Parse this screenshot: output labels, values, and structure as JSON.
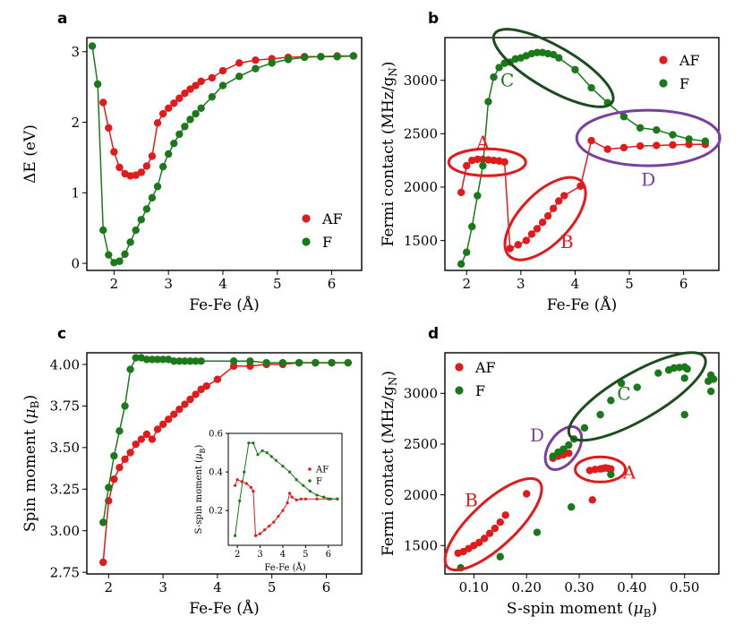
{
  "colors": {
    "AF": "#e31a1c",
    "F": "#1a7a1a",
    "C_ellipse": "#1d4d1d",
    "D_ellipse": "#7b3fa0",
    "red": "#e31a1c"
  },
  "chart_data": [
    {
      "id": "a",
      "type": "line",
      "panel_label": "a",
      "xlabel": "Fe-Fe (Å)",
      "ylabel": "ΔE (eV)",
      "xlim": [
        1.5,
        6.55
      ],
      "ylim": [
        -0.1,
        3.2
      ],
      "xticks": [
        2,
        3,
        4,
        5,
        6
      ],
      "yticks": [
        0,
        1,
        2,
        3
      ],
      "legend": "right",
      "series": [
        {
          "name": "AF",
          "color": "AF",
          "x": [
            1.8,
            1.9,
            2.0,
            2.1,
            2.2,
            2.3,
            2.4,
            2.5,
            2.6,
            2.7,
            2.8,
            2.9,
            3.0,
            3.1,
            3.2,
            3.3,
            3.4,
            3.5,
            3.6,
            3.8,
            4.0,
            4.3,
            4.6,
            4.9,
            5.2,
            5.5,
            5.8,
            6.1,
            6.4
          ],
          "y": [
            2.28,
            1.92,
            1.58,
            1.36,
            1.27,
            1.24,
            1.25,
            1.29,
            1.38,
            1.52,
            1.99,
            2.12,
            2.2,
            2.27,
            2.34,
            2.41,
            2.47,
            2.52,
            2.58,
            2.63,
            2.73,
            2.84,
            2.88,
            2.9,
            2.92,
            2.93,
            2.93,
            2.94,
            2.94
          ]
        },
        {
          "name": "F",
          "color": "F",
          "x": [
            1.6,
            1.7,
            1.8,
            1.9,
            2.0,
            2.1,
            2.2,
            2.3,
            2.4,
            2.5,
            2.6,
            2.7,
            2.8,
            2.9,
            3.0,
            3.1,
            3.2,
            3.3,
            3.4,
            3.5,
            3.6,
            3.8,
            4.0,
            4.3,
            4.6,
            4.9,
            5.2,
            5.5,
            5.8,
            6.1,
            6.4
          ],
          "y": [
            3.08,
            2.54,
            0.47,
            0.12,
            0.01,
            0.03,
            0.13,
            0.3,
            0.47,
            0.62,
            0.77,
            0.93,
            1.09,
            1.37,
            1.55,
            1.7,
            1.83,
            1.94,
            2.04,
            2.12,
            2.2,
            2.36,
            2.52,
            2.65,
            2.76,
            2.84,
            2.89,
            2.92,
            2.93,
            2.93,
            2.94
          ]
        }
      ]
    },
    {
      "id": "b",
      "type": "line",
      "panel_label": "b",
      "xlabel": "Fe-Fe (Å)",
      "ylabel": "Fermi contact (MHz/g",
      "ylabel_sub": "N",
      "ylabel_end": ")",
      "xlim": [
        1.6,
        6.65
      ],
      "ylim": [
        1220,
        3400
      ],
      "xticks": [
        2,
        3,
        4,
        5,
        6
      ],
      "yticks": [
        1500,
        2000,
        2500,
        3000
      ],
      "legend": "top-right",
      "series": [
        {
          "name": "AF",
          "color": "AF",
          "x": [
            1.9,
            2.0,
            2.1,
            2.2,
            2.3,
            2.4,
            2.5,
            2.6,
            2.7,
            2.8,
            2.95,
            3.1,
            3.2,
            3.3,
            3.4,
            3.5,
            3.6,
            3.7,
            3.8,
            4.1,
            4.3,
            4.6,
            4.9,
            5.2,
            5.5,
            5.8,
            6.1,
            6.4
          ],
          "y": [
            1950,
            2200,
            2250,
            2260,
            2260,
            2255,
            2250,
            2245,
            2235,
            1425,
            1460,
            1500,
            1560,
            1610,
            1670,
            1730,
            1800,
            1870,
            1920,
            2010,
            2435,
            2355,
            2370,
            2385,
            2390,
            2395,
            2400,
            2400
          ]
        },
        {
          "name": "F",
          "color": "F",
          "x": [
            1.9,
            2.0,
            2.1,
            2.2,
            2.3,
            2.4,
            2.5,
            2.6,
            2.7,
            2.8,
            2.9,
            3.0,
            3.1,
            3.2,
            3.3,
            3.4,
            3.5,
            3.6,
            3.7,
            4.0,
            4.3,
            4.6,
            4.9,
            5.2,
            5.5,
            5.8,
            6.1,
            6.4
          ],
          "y": [
            1280,
            1390,
            1630,
            1920,
            2200,
            2800,
            3030,
            3120,
            3160,
            3170,
            3200,
            3210,
            3230,
            3250,
            3260,
            3260,
            3250,
            3240,
            3210,
            3100,
            2930,
            2790,
            2660,
            2555,
            2535,
            2490,
            2450,
            2430
          ]
        }
      ],
      "annotations": [
        {
          "text": "A",
          "x": 2.3,
          "y": 2420,
          "color": "AF"
        },
        {
          "text": "B",
          "x": 3.85,
          "y": 1490,
          "color": "AF"
        },
        {
          "text": "C",
          "x": 2.75,
          "y": 3000,
          "color": "F"
        },
        {
          "text": "D",
          "x": 5.35,
          "y": 2070,
          "color": "D_ellipse"
        }
      ]
    },
    {
      "id": "c",
      "type": "line",
      "panel_label": "c",
      "xlabel": "Fe-Fe (Å)",
      "ylabel": "Spin moment (",
      "ylabel_mu": "μ",
      "ylabel_sub": "B",
      "ylabel_end": ")",
      "xlim": [
        1.6,
        6.65
      ],
      "ylim": [
        2.74,
        4.07
      ],
      "xticks": [
        2,
        3,
        4,
        5,
        6
      ],
      "yticks": [
        2.75,
        3.0,
        3.25,
        3.5,
        3.75,
        4.0
      ],
      "series": [
        {
          "name": "AF",
          "color": "AF",
          "x": [
            1.9,
            2.0,
            2.1,
            2.2,
            2.3,
            2.4,
            2.5,
            2.6,
            2.7,
            2.8,
            2.9,
            3.0,
            3.1,
            3.2,
            3.3,
            3.4,
            3.5,
            3.6,
            3.7,
            3.8,
            4.0,
            4.3,
            4.6,
            4.9,
            5.2,
            5.5,
            5.8,
            6.1,
            6.4
          ],
          "y": [
            2.81,
            3.18,
            3.31,
            3.38,
            3.43,
            3.47,
            3.52,
            3.55,
            3.58,
            3.55,
            3.61,
            3.64,
            3.67,
            3.7,
            3.73,
            3.76,
            3.79,
            3.82,
            3.85,
            3.87,
            3.91,
            3.99,
            3.99,
            4.0,
            4.0,
            4.01,
            4.01,
            4.01,
            4.01
          ]
        },
        {
          "name": "F",
          "color": "F",
          "x": [
            1.9,
            2.0,
            2.1,
            2.2,
            2.3,
            2.4,
            2.5,
            2.6,
            2.7,
            2.8,
            2.9,
            3.0,
            3.1,
            3.2,
            3.3,
            3.4,
            3.5,
            3.6,
            3.7,
            4.3,
            4.6,
            4.9,
            5.2,
            5.5,
            5.8,
            6.1,
            6.4
          ],
          "y": [
            3.05,
            3.26,
            3.45,
            3.6,
            3.75,
            3.97,
            4.04,
            4.04,
            4.03,
            4.03,
            4.03,
            4.03,
            4.03,
            4.02,
            4.02,
            4.02,
            4.02,
            4.02,
            4.02,
            4.02,
            4.02,
            4.01,
            4.01,
            4.01,
            4.01,
            4.01,
            4.01
          ]
        }
      ]
    },
    {
      "id": "c-inset",
      "type": "line",
      "xlabel": "Fe-Fe (Å)",
      "ylabel": "S-spin moment (",
      "ylabel_mu": "μ",
      "ylabel_sub": "B",
      "ylabel_end": ")",
      "xlim": [
        1.6,
        6.6
      ],
      "ylim": [
        0.02,
        0.6
      ],
      "xticks": [
        2,
        3,
        4,
        5,
        6
      ],
      "yticks": [
        0.2,
        0.4,
        0.6
      ],
      "legend": "right",
      "series": [
        {
          "name": "AF",
          "color": "AF",
          "x": [
            1.9,
            2.0,
            2.2,
            2.4,
            2.6,
            2.7,
            2.8,
            3.0,
            3.2,
            3.4,
            3.6,
            3.8,
            4.0,
            4.2,
            4.3,
            4.4,
            4.6,
            4.8,
            5.0,
            5.5,
            6.0,
            6.4
          ],
          "y": [
            0.33,
            0.36,
            0.35,
            0.34,
            0.32,
            0.3,
            0.07,
            0.08,
            0.1,
            0.12,
            0.14,
            0.17,
            0.2,
            0.24,
            0.29,
            0.27,
            0.255,
            0.26,
            0.26,
            0.26,
            0.26,
            0.26
          ]
        },
        {
          "name": "F",
          "color": "F",
          "x": [
            1.9,
            2.1,
            2.3,
            2.5,
            2.7,
            2.9,
            3.1,
            3.3,
            3.5,
            3.7,
            4.0,
            4.3,
            4.6,
            4.9,
            5.2,
            5.5,
            5.8,
            6.1,
            6.4
          ],
          "y": [
            0.07,
            0.25,
            0.4,
            0.55,
            0.55,
            0.49,
            0.51,
            0.5,
            0.48,
            0.46,
            0.43,
            0.4,
            0.36,
            0.33,
            0.3,
            0.28,
            0.27,
            0.26,
            0.26
          ]
        }
      ]
    },
    {
      "id": "d",
      "type": "scatter",
      "panel_label": "d",
      "xlabel": "S-spin moment (",
      "xlabel_mu": "μ",
      "xlabel_sub": "B",
      "xlabel_end": ")",
      "ylabel": "Fermi contact (MHz/g",
      "ylabel_sub": "N",
      "ylabel_end": ")",
      "xlim": [
        0.045,
        0.565
      ],
      "ylim": [
        1220,
        3400
      ],
      "xticks": [
        0.1,
        0.2,
        0.3,
        0.4,
        0.5
      ],
      "yticks": [
        1500,
        2000,
        2500,
        3000
      ],
      "legend": "top-left",
      "series": [
        {
          "name": "AF",
          "color": "AF",
          "x": [
            0.07,
            0.08,
            0.09,
            0.1,
            0.11,
            0.12,
            0.13,
            0.14,
            0.15,
            0.16,
            0.2,
            0.25,
            0.26,
            0.27,
            0.28,
            0.32,
            0.33,
            0.34,
            0.345,
            0.35,
            0.355,
            0.36,
            0.325
          ],
          "y": [
            1425,
            1440,
            1470,
            1500,
            1530,
            1570,
            1620,
            1670,
            1730,
            1800,
            2010,
            2360,
            2380,
            2395,
            2410,
            2240,
            2250,
            2255,
            2260,
            2265,
            2260,
            2255,
            1950
          ]
        },
        {
          "name": "F",
          "color": "F",
          "x": [
            0.075,
            0.15,
            0.22,
            0.25,
            0.26,
            0.27,
            0.28,
            0.29,
            0.285,
            0.31,
            0.34,
            0.36,
            0.38,
            0.41,
            0.45,
            0.47,
            0.48,
            0.49,
            0.5,
            0.505,
            0.5,
            0.55,
            0.545,
            0.555,
            0.55,
            0.36,
            0.5
          ],
          "y": [
            1280,
            1390,
            1630,
            2380,
            2420,
            2450,
            2490,
            2550,
            1880,
            2660,
            2790,
            2930,
            3100,
            3060,
            3200,
            3230,
            3250,
            3255,
            3260,
            3240,
            3150,
            3180,
            3120,
            3140,
            3020,
            2200,
            2790
          ]
        }
      ],
      "annotations": [
        {
          "text": "A",
          "x": 0.395,
          "y": 2220,
          "color": "AF"
        },
        {
          "text": "B",
          "x": 0.095,
          "y": 1950,
          "color": "AF"
        },
        {
          "text": "C",
          "x": 0.385,
          "y": 3000,
          "color": "F"
        },
        {
          "text": "D",
          "x": 0.22,
          "y": 2590,
          "color": "D_ellipse"
        }
      ]
    }
  ]
}
